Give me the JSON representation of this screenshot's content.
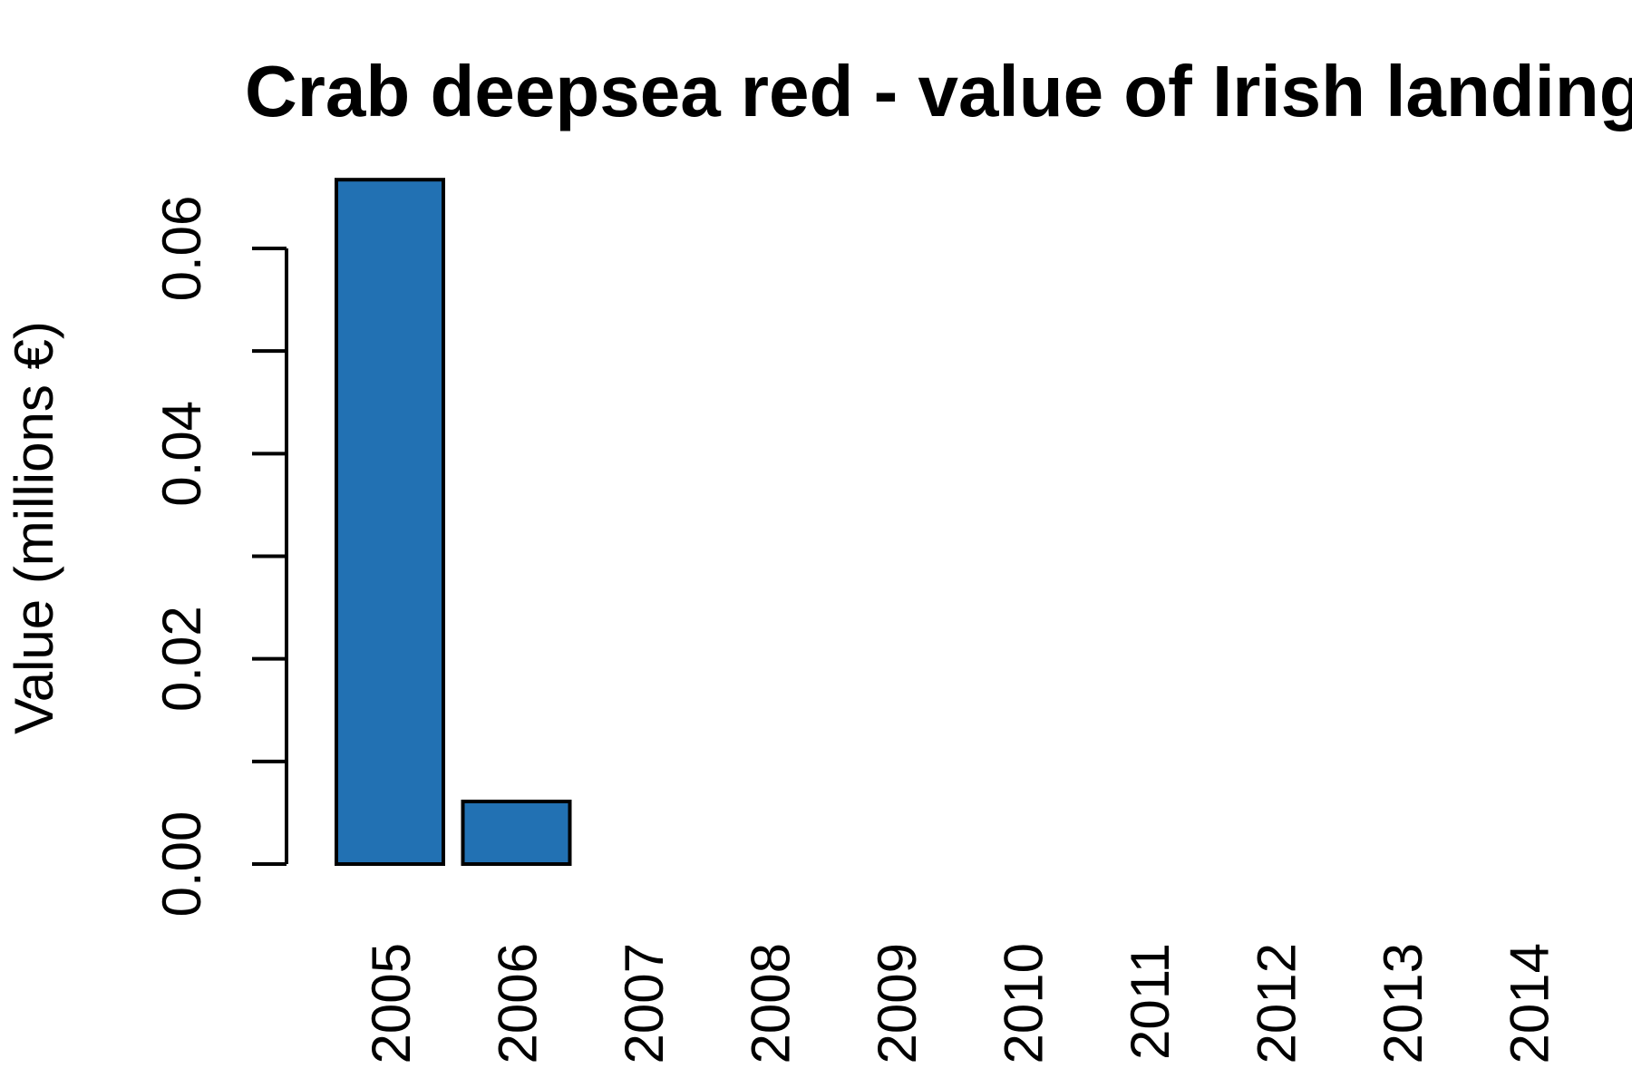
{
  "chart_data": {
    "type": "bar",
    "title": "Crab deepsea red - value of Irish landing",
    "xlabel": "",
    "ylabel": "Value (millions €)",
    "categories": [
      "2005",
      "2006",
      "2007",
      "2008",
      "2009",
      "2010",
      "2011",
      "2012",
      "2013",
      "2014"
    ],
    "values": [
      0.0667,
      0.0061,
      0,
      0,
      0,
      0,
      0,
      0,
      0,
      0
    ],
    "ylim": [
      0,
      0.06
    ],
    "yticks": [
      "0.00",
      "0.02",
      "0.04",
      "0.06"
    ],
    "minor_yticks": [
      0.01,
      0.03,
      0.05
    ],
    "grid": false,
    "bar_color": "#2271b3",
    "edge_color": "#000000"
  }
}
